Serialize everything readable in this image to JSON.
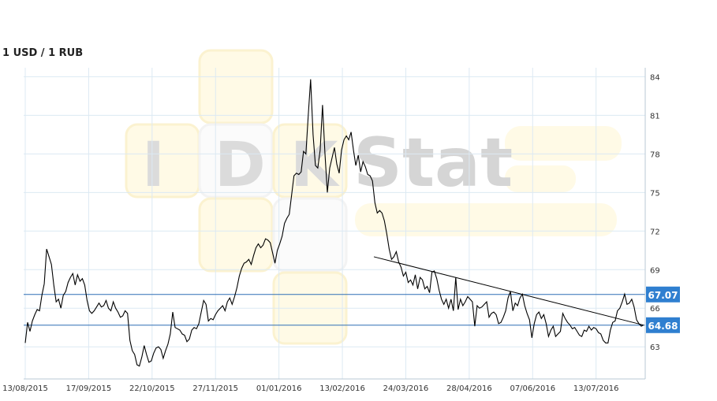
{
  "chart_data": {
    "type": "line",
    "title": "1 USD / 1 RUB",
    "xlabel": "",
    "ylabel": "",
    "x_ticks": [
      "13/08/2015",
      "17/09/2015",
      "22/10/2015",
      "27/11/2015",
      "01/01/2016",
      "13/02/2016",
      "24/03/2016",
      "28/04/2016",
      "07/06/2016",
      "13/07/2016"
    ],
    "y_ticks": [
      63,
      66,
      69,
      72,
      75,
      78,
      81,
      84
    ],
    "ylim": [
      60.5,
      84.7
    ],
    "grid": true,
    "series": [
      {
        "values": [
          63.3,
          64.9,
          64.2,
          65.0,
          65.5,
          65.9,
          65.8,
          67.0,
          67.9,
          70.6,
          70.0,
          69.4,
          67.8,
          66.5,
          66.7,
          66.0,
          67.0,
          67.3,
          68.0,
          68.4,
          68.7,
          67.8,
          68.6,
          68.1,
          68.3,
          67.8,
          66.6,
          65.8,
          65.6,
          65.8,
          66.1,
          66.4,
          66.1,
          66.2,
          66.6,
          66.0,
          65.8,
          66.5,
          66.0,
          65.7,
          65.3,
          65.4,
          65.8,
          65.6,
          63.5,
          62.7,
          62.4,
          61.6,
          61.5,
          62.2,
          63.1,
          62.4,
          61.8,
          61.9,
          62.5,
          62.9,
          63.0,
          62.8,
          62.1,
          62.7,
          63.2,
          64.0,
          65.7,
          64.5,
          64.4,
          64.3,
          64.0,
          63.9,
          63.4,
          63.6,
          64.3,
          64.5,
          64.4,
          64.8,
          65.7,
          66.6,
          66.3,
          65.0,
          65.2,
          65.1,
          65.5,
          65.8,
          66.0,
          66.2,
          65.8,
          66.5,
          66.8,
          66.3,
          66.9,
          67.6,
          68.5,
          69.1,
          69.5,
          69.6,
          69.8,
          69.4,
          70.1,
          70.7,
          71.0,
          70.7,
          70.9,
          71.4,
          71.3,
          71.1,
          70.3,
          69.5,
          70.5,
          71.0,
          71.6,
          72.6,
          73.0,
          73.3,
          74.8,
          76.3,
          76.5,
          76.4,
          76.6,
          78.2,
          78.0,
          81.0,
          83.8,
          79.5,
          77.1,
          76.9,
          78.3,
          81.8,
          78.1,
          75.0,
          76.9,
          77.7,
          78.5,
          77.2,
          76.5,
          78.3,
          79.1,
          79.4,
          79.1,
          79.7,
          78.3,
          77.1,
          77.9,
          76.6,
          77.4,
          77.0,
          76.4,
          76.3,
          75.9,
          74.2,
          73.4,
          73.6,
          73.4,
          72.8,
          71.8,
          70.6,
          69.8,
          70.0,
          70.4,
          69.6,
          69.2,
          68.5,
          68.8,
          68.0,
          68.2,
          67.8,
          68.6,
          67.5,
          68.4,
          68.2,
          67.5,
          67.7,
          67.2,
          68.8,
          68.9,
          68.3,
          67.4,
          66.7,
          66.3,
          66.7,
          66.0,
          66.7,
          65.8,
          68.4,
          65.9,
          66.7,
          66.2,
          66.5,
          66.9,
          66.7,
          66.5,
          64.6,
          66.2,
          66.0,
          66.1,
          66.3,
          66.5,
          65.3,
          65.6,
          65.7,
          65.5,
          64.8,
          64.9,
          65.3,
          65.8,
          66.8,
          67.3,
          65.8,
          66.4,
          66.2,
          66.8,
          67.1,
          66.2,
          65.6,
          65.1,
          63.7,
          64.8,
          65.5,
          65.7,
          65.2,
          65.5,
          64.8,
          63.8,
          64.3,
          64.6,
          63.8,
          64.0,
          64.2,
          65.6,
          65.2,
          64.9,
          64.7,
          64.4,
          64.5,
          64.2,
          63.9,
          63.8,
          64.3,
          64.2,
          64.6,
          64.3,
          64.5,
          64.4,
          64.1,
          64.0,
          63.5,
          63.3,
          63.3,
          64.3,
          64.9,
          65.0,
          65.8,
          66.0,
          66.5,
          67.1,
          66.3,
          66.4,
          66.7,
          66.1,
          65.1,
          64.8,
          64.6,
          64.7
        ]
      }
    ],
    "annotations": [
      {
        "type": "hline",
        "value": 67.07,
        "label": "67.07"
      },
      {
        "type": "hline",
        "value": 64.68,
        "label": "64.68"
      },
      {
        "type": "trendline",
        "from_value": 70.0,
        "to_value": 64.7
      }
    ],
    "colors": {
      "line": "#000000",
      "marker_line": "#2f6fb5",
      "marker_label_bg": "#2f7fd0",
      "grid": "#dce9f3"
    }
  }
}
